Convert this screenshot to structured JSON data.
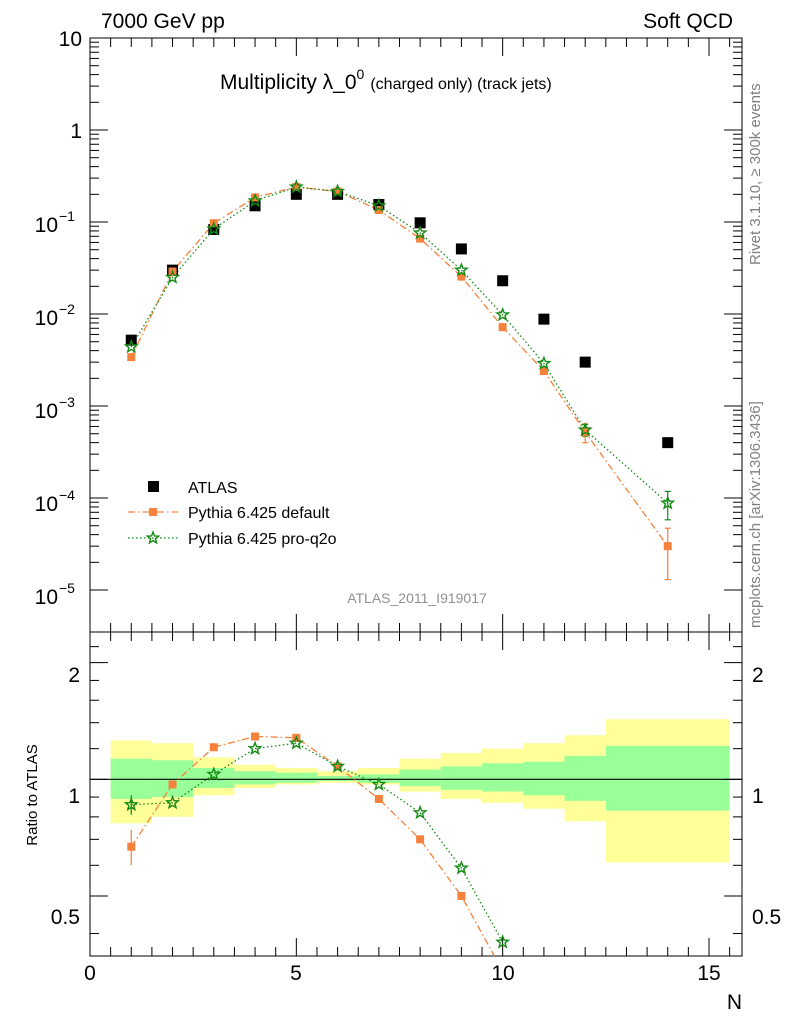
{
  "header": {
    "left": "7000 GeV pp",
    "right": "Soft QCD"
  },
  "title": {
    "main": "Multiplicity λ_0",
    "sup": "0",
    "small": "(charged only) (track jets)"
  },
  "watermark": "ATLAS_2011_I919017",
  "side_text": {
    "rivet": "Rivet 3.1.10, ≥ 300k events",
    "mcplots": "mcplots.cern.ch [arXiv:1306.3436]"
  },
  "legend": {
    "atlas": "ATLAS",
    "default": "Pythia 6.425 default",
    "proq2o": "Pythia 6.425 pro-q2o"
  },
  "axes": {
    "xlabel": "N",
    "ratio_ylabel": "Ratio to ATLAS",
    "x_ticks": [
      "0",
      "5",
      "10",
      "15"
    ],
    "main_y_ticks": [
      "10",
      "1",
      "10",
      "10",
      "10",
      "10",
      "10"
    ],
    "main_y_exps": [
      "",
      "",
      "−1",
      "−2",
      "−3",
      "−4",
      "−5"
    ],
    "ratio_y_ticks": [
      "2",
      "1",
      "0.5"
    ]
  },
  "colors": {
    "atlas": "#000000",
    "default": "#f5813a",
    "proq2o": "#138a13",
    "band_outer": "#ffff99",
    "band_inner": "#99ff99"
  },
  "chart_data": [
    {
      "type": "scatter",
      "panel": "main",
      "title": "Multiplicity λ_0^0 (charged only) (track jets)",
      "xlabel": "N",
      "ylabel": "",
      "xlim": [
        0,
        15.8
      ],
      "ylim": [
        3.5e-06,
        10
      ],
      "yscale": "log",
      "legend": "bottom-left",
      "series": [
        {
          "name": "ATLAS",
          "marker": "square",
          "x": [
            1,
            2,
            3,
            4,
            5,
            6,
            7,
            8,
            9,
            10,
            11,
            12,
            14
          ],
          "y": [
            0.0052,
            0.03,
            0.083,
            0.15,
            0.2,
            0.2,
            0.155,
            0.098,
            0.051,
            0.023,
            0.0088,
            0.003,
            0.0004
          ]
        },
        {
          "name": "Pythia 6.425 default",
          "marker": "square",
          "line": "dash-dot",
          "x": [
            1,
            2,
            3,
            4,
            5,
            6,
            7,
            8,
            9,
            10,
            11,
            12,
            14
          ],
          "y": [
            0.0034,
            0.029,
            0.097,
            0.185,
            0.24,
            0.215,
            0.135,
            0.066,
            0.0255,
            0.0072,
            0.0024,
            0.00052,
            3e-05
          ],
          "yerr": [
            0,
            0,
            0,
            0,
            0,
            0,
            0,
            0,
            0,
            0,
            0,
            0.00012,
            1.7e-05
          ]
        },
        {
          "name": "Pythia 6.425 pro-q2o",
          "marker": "star",
          "line": "dotted",
          "x": [
            1,
            2,
            3,
            4,
            5,
            6,
            7,
            8,
            9,
            10,
            11,
            12,
            14
          ],
          "y": [
            0.0044,
            0.025,
            0.084,
            0.17,
            0.24,
            0.215,
            0.15,
            0.076,
            0.03,
            0.0098,
            0.0029,
            0.00055,
            8.8e-05
          ],
          "yerr": [
            0,
            0,
            0,
            0,
            0,
            0,
            0,
            0,
            0,
            0,
            0,
            8e-05,
            3e-05
          ]
        }
      ]
    },
    {
      "type": "line",
      "panel": "ratio",
      "xlabel": "N",
      "ylabel": "Ratio to ATLAS",
      "xlim": [
        0,
        15.8
      ],
      "ylim": [
        0.35,
        2.4
      ],
      "yscale": "log",
      "bands": [
        {
          "xlo": 0.5,
          "xhi": 1.5,
          "outer": [
            0.77,
            1.26
          ],
          "inner": [
            0.89,
            1.13
          ]
        },
        {
          "xlo": 1.5,
          "xhi": 2.5,
          "outer": [
            0.8,
            1.24
          ],
          "inner": [
            0.9,
            1.12
          ]
        },
        {
          "xlo": 2.5,
          "xhi": 3.5,
          "outer": [
            0.91,
            1.14
          ],
          "inner": [
            0.95,
            1.07
          ]
        },
        {
          "xlo": 3.5,
          "xhi": 4.5,
          "outer": [
            0.95,
            1.09
          ],
          "inner": [
            0.97,
            1.05
          ]
        },
        {
          "xlo": 4.5,
          "xhi": 5.5,
          "outer": [
            0.97,
            1.07
          ],
          "inner": [
            0.98,
            1.04
          ]
        },
        {
          "xlo": 5.5,
          "xhi": 6.5,
          "outer": [
            0.98,
            1.05
          ],
          "inner": [
            0.99,
            1.02
          ]
        },
        {
          "xlo": 6.5,
          "xhi": 7.5,
          "outer": [
            0.97,
            1.07
          ],
          "inner": [
            0.98,
            1.03
          ]
        },
        {
          "xlo": 7.5,
          "xhi": 8.5,
          "outer": [
            0.93,
            1.13
          ],
          "inner": [
            0.96,
            1.06
          ]
        },
        {
          "xlo": 8.5,
          "xhi": 9.5,
          "outer": [
            0.89,
            1.17
          ],
          "inner": [
            0.94,
            1.08
          ]
        },
        {
          "xlo": 9.5,
          "xhi": 10.5,
          "outer": [
            0.87,
            1.2
          ],
          "inner": [
            0.93,
            1.1
          ]
        },
        {
          "xlo": 10.5,
          "xhi": 11.5,
          "outer": [
            0.84,
            1.24
          ],
          "inner": [
            0.91,
            1.11
          ]
        },
        {
          "xlo": 11.5,
          "xhi": 12.5,
          "outer": [
            0.78,
            1.3
          ],
          "inner": [
            0.88,
            1.15
          ]
        },
        {
          "xlo": 12.5,
          "xhi": 15.5,
          "outer": [
            0.61,
            1.43
          ],
          "inner": [
            0.83,
            1.22
          ]
        }
      ],
      "series": [
        {
          "name": "Pythia 6.425 default",
          "x": [
            1,
            2,
            3,
            4,
            5,
            6,
            7,
            8,
            9,
            10
          ],
          "y": [
            0.67,
            0.97,
            1.21,
            1.29,
            1.28,
            1.08,
            0.89,
            0.7,
            0.5,
            0.32
          ]
        },
        {
          "name": "Pythia 6.425 pro-q2o",
          "x": [
            1,
            2,
            3,
            4,
            5,
            6,
            7,
            8,
            9,
            10
          ],
          "y": [
            0.86,
            0.87,
            1.03,
            1.2,
            1.24,
            1.08,
            0.97,
            0.82,
            0.59,
            0.38
          ]
        }
      ]
    }
  ]
}
